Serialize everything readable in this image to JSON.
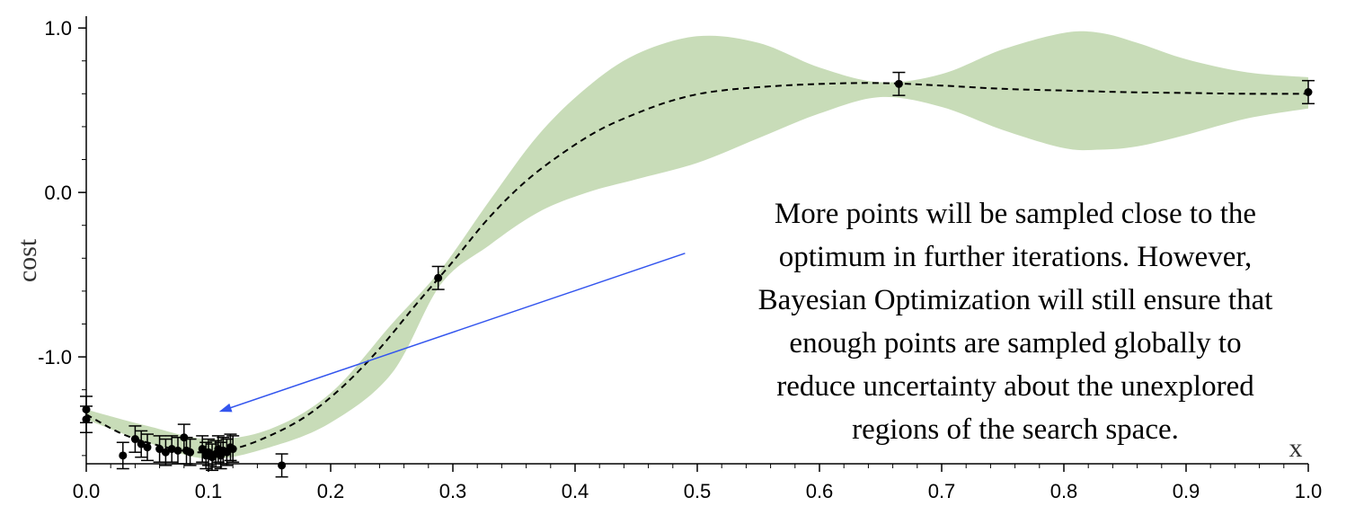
{
  "chart_data": {
    "type": "line",
    "title": "",
    "xlabel": "x",
    "ylabel": "cost",
    "xlim": [
      0.0,
      1.0
    ],
    "ylim": [
      -1.65,
      1.05
    ],
    "x_ticks": [
      0.0,
      0.1,
      0.2,
      0.3,
      0.4,
      0.5,
      0.6,
      0.7,
      0.8,
      0.9,
      1.0
    ],
    "x_tick_labels": [
      "0.0",
      "0.1",
      "0.2",
      "0.3",
      "0.4",
      "0.5",
      "0.6",
      "0.7",
      "0.8",
      "0.9",
      "1.0"
    ],
    "y_ticks": [
      1.0,
      0.0,
      -1.0
    ],
    "y_tick_labels": [
      "1.0",
      "0.0",
      "-1.0"
    ],
    "grid": false,
    "colors": {
      "band": "#c8dcb8",
      "mean": "#000000",
      "points": "#000000",
      "arrow": "#3355ee"
    },
    "mean_curve": {
      "x": [
        0.0,
        0.03,
        0.06,
        0.09,
        0.12,
        0.15,
        0.18,
        0.21,
        0.24,
        0.27,
        0.3,
        0.33,
        0.36,
        0.39,
        0.42,
        0.45,
        0.48,
        0.51,
        0.55,
        0.6,
        0.65,
        0.7,
        0.75,
        0.8,
        0.85,
        0.9,
        0.95,
        1.0
      ],
      "y": [
        -1.35,
        -1.47,
        -1.54,
        -1.58,
        -1.56,
        -1.48,
        -1.36,
        -1.18,
        -0.95,
        -0.68,
        -0.42,
        -0.15,
        0.07,
        0.24,
        0.38,
        0.48,
        0.56,
        0.61,
        0.64,
        0.66,
        0.665,
        0.65,
        0.63,
        0.62,
        0.61,
        0.605,
        0.6,
        0.6
      ]
    },
    "confidence_band": {
      "x": [
        0.0,
        0.05,
        0.1,
        0.15,
        0.2,
        0.25,
        0.29,
        0.33,
        0.37,
        0.41,
        0.45,
        0.5,
        0.55,
        0.6,
        0.65,
        0.7,
        0.75,
        0.8,
        0.83,
        0.86,
        0.9,
        0.95,
        1.0
      ],
      "upper": [
        -1.32,
        -1.42,
        -1.5,
        -1.44,
        -1.22,
        -0.8,
        -0.47,
        -0.05,
        0.35,
        0.64,
        0.84,
        0.95,
        0.91,
        0.76,
        0.67,
        0.72,
        0.87,
        0.97,
        0.97,
        0.91,
        0.81,
        0.73,
        0.7
      ],
      "lower": [
        -1.38,
        -1.52,
        -1.62,
        -1.55,
        -1.4,
        -1.1,
        -0.56,
        -0.32,
        -0.12,
        0.0,
        0.08,
        0.18,
        0.33,
        0.48,
        0.58,
        0.52,
        0.38,
        0.27,
        0.26,
        0.28,
        0.35,
        0.45,
        0.51
      ]
    },
    "points": [
      {
        "x": 0.0,
        "y": -1.32,
        "err": 0.08
      },
      {
        "x": 0.0,
        "y": -1.38,
        "err": 0.08
      },
      {
        "x": 0.03,
        "y": -1.6,
        "err": 0.08
      },
      {
        "x": 0.04,
        "y": -1.5,
        "err": 0.08
      },
      {
        "x": 0.045,
        "y": -1.53,
        "err": 0.08
      },
      {
        "x": 0.05,
        "y": -1.55,
        "err": 0.08
      },
      {
        "x": 0.06,
        "y": -1.56,
        "err": 0.08
      },
      {
        "x": 0.065,
        "y": -1.58,
        "err": 0.08
      },
      {
        "x": 0.07,
        "y": -1.56,
        "err": 0.08
      },
      {
        "x": 0.075,
        "y": -1.57,
        "err": 0.08
      },
      {
        "x": 0.08,
        "y": -1.49,
        "err": 0.08
      },
      {
        "x": 0.082,
        "y": -1.57,
        "err": 0.08
      },
      {
        "x": 0.085,
        "y": -1.58,
        "err": 0.08
      },
      {
        "x": 0.095,
        "y": -1.56,
        "err": 0.08
      },
      {
        "x": 0.098,
        "y": -1.6,
        "err": 0.08
      },
      {
        "x": 0.1,
        "y": -1.58,
        "err": 0.08
      },
      {
        "x": 0.103,
        "y": -1.61,
        "err": 0.08
      },
      {
        "x": 0.106,
        "y": -1.59,
        "err": 0.08
      },
      {
        "x": 0.108,
        "y": -1.56,
        "err": 0.08
      },
      {
        "x": 0.11,
        "y": -1.6,
        "err": 0.08
      },
      {
        "x": 0.112,
        "y": -1.57,
        "err": 0.08
      },
      {
        "x": 0.115,
        "y": -1.58,
        "err": 0.08
      },
      {
        "x": 0.118,
        "y": -1.55,
        "err": 0.08
      },
      {
        "x": 0.12,
        "y": -1.56,
        "err": 0.08
      },
      {
        "x": 0.16,
        "y": -1.66,
        "err": 0.07
      },
      {
        "x": 0.288,
        "y": -0.52,
        "err": 0.07
      },
      {
        "x": 0.665,
        "y": 0.66,
        "err": 0.07
      },
      {
        "x": 1.0,
        "y": 0.61,
        "err": 0.07
      }
    ],
    "annotation": {
      "lines": [
        "More points will be sampled close to the",
        "optimum in further iterations. However,",
        "Bayesian Optimization will still ensure that",
        "enough points are sampled globally to",
        "reduce uncertainty about the unexplored",
        "regions of the search space."
      ],
      "arrow_from": {
        "x": 0.49,
        "y": -0.37
      },
      "arrow_to": {
        "x": 0.11,
        "y": -1.33
      }
    }
  }
}
